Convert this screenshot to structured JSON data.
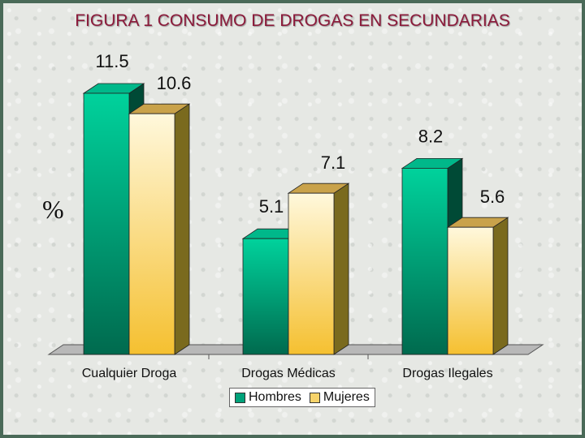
{
  "chart_data": {
    "type": "bar",
    "title": "FIGURA 1 CONSUMO DE DROGAS EN SECUNDARIAS",
    "ylabel": "%",
    "xlabel": "",
    "categories": [
      "Cualquier Droga",
      "Drogas Médicas",
      "Drogas Ilegales"
    ],
    "series": [
      {
        "name": "Hombres",
        "values": [
          11.5,
          5.1,
          8.2
        ],
        "color": "#00a27a"
      },
      {
        "name": "Mujeres",
        "values": [
          10.6,
          7.1,
          5.6
        ],
        "color": "#f7d36a"
      }
    ],
    "value_labels": [
      [
        "11.5",
        "5.1",
        "8.2"
      ],
      [
        "10.6",
        "7.1",
        "5.6"
      ]
    ],
    "ylim": [
      0,
      12
    ],
    "grid": false,
    "legend_position": "bottom",
    "style": "3d"
  }
}
